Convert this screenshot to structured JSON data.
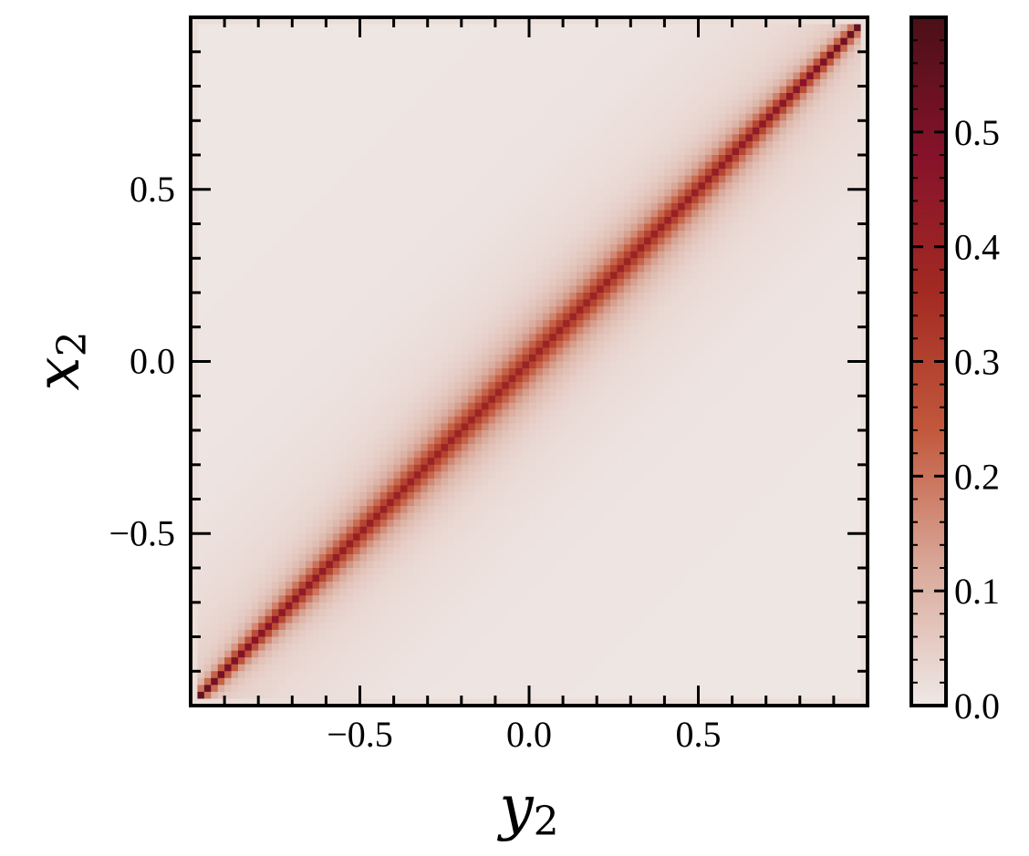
{
  "chart_data": {
    "type": "heatmap",
    "title": "",
    "xlabel": "y",
    "xlabel_subscript": "2",
    "ylabel": "x",
    "ylabel_subscript": "2",
    "xlim": [
      -1,
      1
    ],
    "ylim": [
      -1,
      1
    ],
    "x_ticks": [
      -0.5,
      0.0,
      0.5
    ],
    "x_tick_labels": [
      "−0.5",
      "0.0",
      "0.5"
    ],
    "y_ticks": [
      -0.5,
      0.0,
      0.5
    ],
    "y_tick_labels": [
      "−0.5",
      "0.0",
      "0.5"
    ],
    "grid": false,
    "description": "Density concentrated along the diagonal x2 = y2; peak value ~0.6 on the diagonal (highest near the corners), decaying with distance from it; near 0 far from the diagonal.",
    "colorbar": {
      "range": [
        0.0,
        0.6
      ],
      "ticks": [
        0.0,
        0.1,
        0.2,
        0.3,
        0.4,
        0.5
      ],
      "tick_labels": [
        "0.0",
        "0.1",
        "0.2",
        "0.3",
        "0.4",
        "0.5"
      ],
      "colors": [
        "#efe8e6",
        "#d9a99a",
        "#c2583c",
        "#a32a22",
        "#86122a",
        "#4a1018"
      ]
    }
  }
}
